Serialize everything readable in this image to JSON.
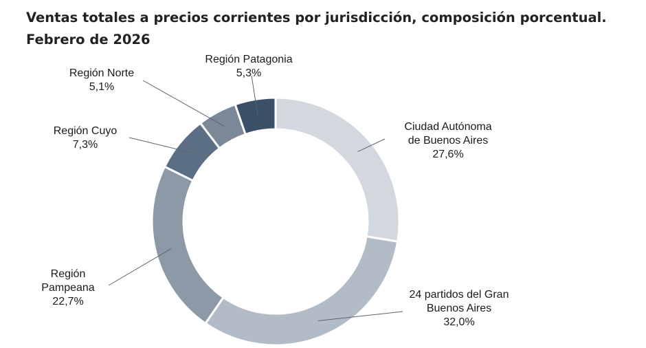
{
  "title_line1": "Ventas totales a precios corrientes por jurisdicción, composición porcentual.",
  "title_line2": "Febrero de 2026",
  "chart_data": {
    "type": "pie",
    "donut": true,
    "title": "Ventas totales a precios corrientes por jurisdicción, composición porcentual. Febrero de 2026",
    "unit": "%",
    "slices": [
      {
        "name_lines": [
          "Ciudad Autónoma",
          "de Buenos Aires"
        ],
        "value": 27.6,
        "label": "27,6%",
        "color": "#d3d8de"
      },
      {
        "name_lines": [
          "24 partidos del Gran",
          "Buenos Aires"
        ],
        "value": 32.0,
        "label": "32,0%",
        "color": "#b2bcc6"
      },
      {
        "name_lines": [
          "Región",
          "Pampeana"
        ],
        "value": 22.7,
        "label": "22,7%",
        "color": "#8c9aa8"
      },
      {
        "name_lines": [
          "Región Cuyo"
        ],
        "value": 7.3,
        "label": "7,3%",
        "color": "#5a6e84"
      },
      {
        "name_lines": [
          "Región Norte"
        ],
        "value": 5.1,
        "label": "5,1%",
        "color": "#7a8898"
      },
      {
        "name_lines": [
          "Región Patagonia"
        ],
        "value": 5.3,
        "label": "5,3%",
        "color": "#3a5068"
      }
    ],
    "legend": "none",
    "labels": "outside-with-leader-lines"
  }
}
